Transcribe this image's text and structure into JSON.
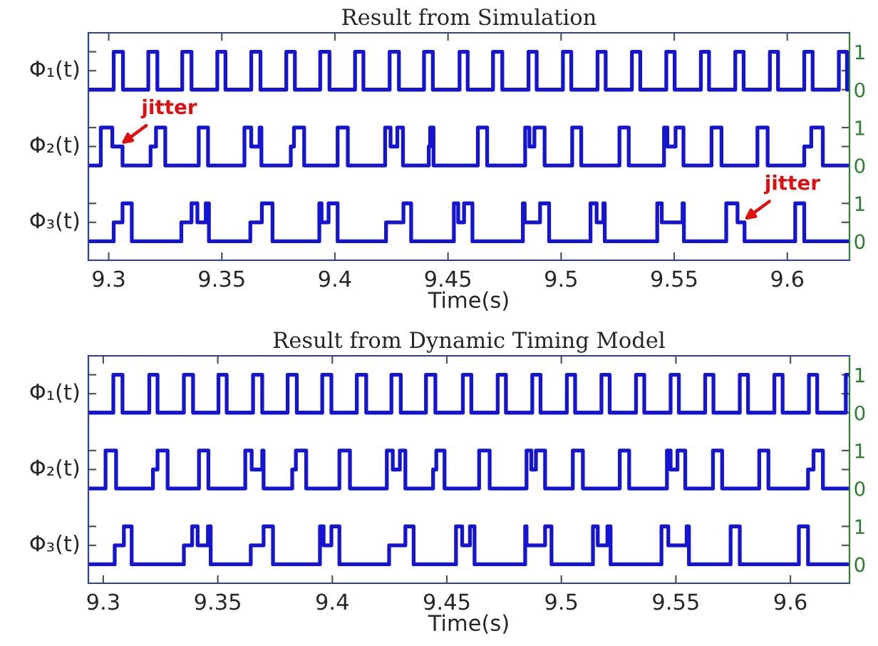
{
  "chart_data": [
    {
      "type": "step",
      "title": "Result from Simulation",
      "ylabel": "Φ₁(t)",
      "xlim": [
        9.291,
        9.6275
      ],
      "xticks": [
        9.3,
        9.35,
        9.4,
        9.45,
        9.5,
        9.55,
        9.6
      ],
      "ylim": [
        -0.5,
        1.5
      ],
      "yticks": [
        {
          "value": 0,
          "label": "0"
        },
        {
          "value": 0.5,
          "label": null
        },
        {
          "value": 1,
          "label": "1"
        }
      ],
      "tick_labels": "y",
      "series": [
        {
          "color": "#1414d2",
          "x": [
            9.291,
            9.3022,
            9.3063,
            9.3175,
            9.3215,
            9.3325,
            9.3366,
            9.348,
            9.3516,
            9.363,
            9.3671,
            9.3785,
            9.3823,
            9.3935,
            9.3976,
            9.4089,
            9.4126,
            9.4242,
            9.4283,
            9.4394,
            9.4433,
            9.4551,
            9.4587,
            9.4699,
            9.474,
            9.4856,
            9.4892,
            9.5008,
            9.5045,
            9.5161,
            9.5197,
            9.5313,
            9.535,
            9.5465,
            9.5502,
            9.5618,
            9.5654,
            9.577,
            9.5807,
            9.5923,
            9.5959,
            9.6075,
            9.6112,
            9.6228,
            9.6264,
            9.6275
          ],
          "values": [
            0,
            1,
            0,
            1,
            0,
            1,
            0,
            1,
            0,
            1,
            0,
            1,
            0,
            1,
            0,
            1,
            0,
            1,
            0,
            1,
            0,
            1,
            0,
            1,
            0,
            1,
            0,
            1,
            0,
            1,
            0,
            1,
            0,
            1,
            0,
            1,
            0,
            1,
            0,
            1,
            0,
            1,
            0,
            1,
            0,
            0
          ]
        }
      ]
    },
    {
      "type": "step",
      "ylabel": "Φ₂(t)",
      "xlim": [
        9.291,
        9.6275
      ],
      "xticks": [
        9.3,
        9.35,
        9.4,
        9.45,
        9.5,
        9.55,
        9.6
      ],
      "ylim": [
        -0.5,
        1.5
      ],
      "yticks": [
        {
          "value": 0,
          "label": "0"
        },
        {
          "value": 0.5,
          "label": null
        },
        {
          "value": 1,
          "label": "1"
        }
      ],
      "tick_labels": "y",
      "annotations": [
        {
          "text": "jitter",
          "x": 9.304,
          "y": 0.5
        }
      ],
      "series": [
        {
          "color": "#1414d2",
          "x": [
            9.291,
            9.2965,
            9.3016,
            9.3061,
            9.3185,
            9.3209,
            9.325,
            9.3398,
            9.3439,
            9.36,
            9.363,
            9.3667,
            9.3675,
            9.3805,
            9.3819,
            9.3864,
            9.4012,
            9.4057,
            9.4222,
            9.4246,
            9.4276,
            9.4301,
            9.4415,
            9.4421,
            9.4436,
            9.4632,
            9.4673,
            9.4841,
            9.486,
            9.4882,
            9.4927,
            9.5049,
            9.5089,
            9.5258,
            9.5299,
            9.5455,
            9.547,
            9.5506,
            9.5541,
            9.5665,
            9.5709,
            9.5868,
            9.5913,
            9.6075,
            9.6106,
            9.6157,
            9.6275
          ],
          "values": [
            0,
            1,
            0.5,
            0,
            0.5,
            1,
            0,
            1,
            0,
            1,
            0.5,
            1,
            0,
            0.5,
            1,
            0,
            1,
            0,
            1,
            0.5,
            1,
            0,
            0.5,
            1,
            0,
            1,
            0,
            1,
            0.5,
            1,
            0,
            1,
            0,
            1,
            0,
            1,
            0.5,
            1,
            0,
            1,
            0,
            1,
            0,
            0.5,
            1,
            0,
            0
          ]
        }
      ]
    },
    {
      "type": "step",
      "ylabel": "Φ₃(t)",
      "xlabel": "Time(s)",
      "xlim": [
        9.291,
        9.6275
      ],
      "xticks": [
        9.3,
        9.35,
        9.4,
        9.45,
        9.5,
        9.55,
        9.6
      ],
      "ylim": [
        -0.5,
        1.5
      ],
      "yticks": [
        {
          "value": 0,
          "label": "0"
        },
        {
          "value": 0.5,
          "label": null
        },
        {
          "value": 1,
          "label": "1"
        }
      ],
      "annotations": [
        {
          "text": "jitter",
          "x": 9.5795,
          "y": 0.5
        }
      ],
      "series": [
        {
          "color": "#1414d2",
          "x": [
            9.291,
            9.3022,
            9.3061,
            9.3102,
            9.3321,
            9.3366,
            9.3392,
            9.3429,
            9.3443,
            9.3626,
            9.3677,
            9.3724,
            9.3931,
            9.3941,
            9.3972,
            9.4012,
            9.4226,
            9.4303,
            9.4337,
            9.4526,
            9.4545,
            9.4571,
            9.4608,
            9.4831,
            9.4839,
            9.4907,
            9.4947,
            9.513,
            9.5157,
            9.5187,
            9.5193,
            9.5425,
            9.5445,
            9.5537,
            9.5543,
            9.573,
            9.578,
            9.5811,
            9.6035,
            9.6075,
            9.6275
          ],
          "values": [
            0,
            0.5,
            1,
            0,
            0.5,
            1,
            0.5,
            1,
            0,
            0.5,
            1,
            0,
            1,
            0.5,
            1,
            0,
            0.5,
            1,
            0,
            1,
            0.5,
            1,
            0,
            1,
            0.5,
            1,
            0,
            1,
            0.5,
            1,
            0,
            1,
            0.5,
            1,
            0,
            1,
            0.5,
            0,
            1,
            0,
            0
          ]
        }
      ]
    },
    {
      "type": "step",
      "title": "Result from Dynamic Timing Model",
      "ylabel": "Φ₁(t)",
      "xlim": [
        9.2935,
        9.6258
      ],
      "xticks": [
        9.3,
        9.35,
        9.4,
        9.45,
        9.5,
        9.55,
        9.6
      ],
      "ylim": [
        -0.5,
        1.5
      ],
      "yticks": [
        {
          "value": 0,
          "label": "0"
        },
        {
          "value": 0.5,
          "label": null
        },
        {
          "value": 1,
          "label": "1"
        }
      ],
      "tick_labels": "y",
      "series": [
        {
          "color": "#1414d2",
          "x": [
            9.2935,
            9.3044,
            9.3084,
            9.3201,
            9.3237,
            9.3352,
            9.3392,
            9.3503,
            9.3539,
            9.3654,
            9.3694,
            9.3805,
            9.3845,
            9.3956,
            9.3996,
            9.4107,
            9.4148,
            9.4258,
            9.4299,
            9.4409,
            9.445,
            9.457,
            9.4607,
            9.4722,
            9.4758,
            9.4873,
            9.4909,
            9.5024,
            9.506,
            9.5175,
            9.5211,
            9.5326,
            9.5362,
            9.5477,
            9.5513,
            9.5628,
            9.5664,
            9.5779,
            9.5815,
            9.593,
            9.5966,
            9.6081,
            9.6117,
            9.6242,
            9.6258
          ],
          "values": [
            0,
            1,
            0,
            1,
            0,
            1,
            0,
            1,
            0,
            1,
            0,
            1,
            0,
            1,
            0,
            1,
            0,
            1,
            0,
            1,
            0,
            1,
            0,
            1,
            0,
            1,
            0,
            1,
            0,
            1,
            0,
            1,
            0,
            1,
            0,
            1,
            0,
            1,
            0,
            1,
            0,
            1,
            0,
            1,
            1
          ]
        }
      ]
    },
    {
      "type": "step",
      "ylabel": "Φ₂(t)",
      "xlim": [
        9.2935,
        9.6258
      ],
      "xticks": [
        9.3,
        9.35,
        9.4,
        9.45,
        9.5,
        9.55,
        9.6
      ],
      "ylim": [
        -0.5,
        1.5
      ],
      "yticks": [
        {
          "value": 0,
          "label": "0"
        },
        {
          "value": 0.5,
          "label": null
        },
        {
          "value": 1,
          "label": "1"
        }
      ],
      "tick_labels": "y",
      "series": [
        {
          "color": "#1414d2",
          "x": [
            9.2935,
            9.301,
            9.3056,
            9.3217,
            9.3237,
            9.3281,
            9.3418,
            9.3459,
            9.362,
            9.3648,
            9.3694,
            9.37,
            9.3825,
            9.3841,
            9.3886,
            9.4031,
            9.4077,
            9.4238,
            9.4264,
            9.4295,
            9.4319,
            9.444,
            9.4454,
            9.449,
            9.4641,
            9.4687,
            9.4848,
            9.4869,
            9.4889,
            9.4929,
            9.505,
            9.5094,
            9.5255,
            9.5296,
            9.5461,
            9.5477,
            9.5507,
            9.5541,
            9.5662,
            9.5702,
            9.5864,
            9.5904,
            9.6077,
            9.6101,
            9.6142,
            9.6258
          ],
          "values": [
            0,
            1,
            0,
            0.5,
            1,
            0,
            1,
            0,
            1,
            0.5,
            1,
            0,
            0.5,
            1,
            0,
            1,
            0,
            1,
            0.5,
            1,
            0,
            0.5,
            1,
            0,
            1,
            0,
            1,
            0.5,
            1,
            0,
            1,
            0,
            1,
            0,
            1,
            0.5,
            1,
            0,
            1,
            0,
            1,
            0,
            0.5,
            1,
            0,
            0
          ]
        }
      ]
    },
    {
      "type": "step",
      "ylabel": "Φ₃(t)",
      "xlabel": "Time(s)",
      "xlim": [
        9.2935,
        9.6258
      ],
      "xticks": [
        9.3,
        9.35,
        9.4,
        9.45,
        9.5,
        9.55,
        9.6
      ],
      "ylim": [
        -0.5,
        1.5
      ],
      "yticks": [
        {
          "value": 0,
          "label": "0"
        },
        {
          "value": 0.5,
          "label": null
        },
        {
          "value": 1,
          "label": "1"
        }
      ],
      "series": [
        {
          "color": "#1414d2",
          "x": [
            9.2935,
            9.305,
            9.309,
            9.3124,
            9.3352,
            9.3388,
            9.3412,
            9.3457,
            9.3469,
            9.3644,
            9.37,
            9.3741,
            9.3946,
            9.3962,
            9.3996,
            9.4031,
            9.4248,
            9.4319,
            9.4355,
            9.454,
            9.4567,
            9.4601,
            9.4621,
            9.4842,
            9.4848,
            9.4929,
            9.4957,
            9.5138,
            9.5159,
            9.5201,
            9.5215,
            9.5437,
            9.5467,
            9.5547,
            9.5557,
            9.5739,
            9.5779,
            9.6037,
            9.6077,
            9.6258
          ],
          "values": [
            0,
            0.5,
            1,
            0,
            0.5,
            1,
            0.5,
            1,
            0,
            0.5,
            1,
            0,
            1,
            0.5,
            1,
            0,
            0.5,
            1,
            0,
            1,
            0.5,
            1,
            0,
            1,
            0.5,
            1,
            0,
            1,
            0.5,
            1,
            0,
            1,
            0.5,
            1,
            0,
            1,
            0,
            1,
            0,
            0
          ]
        }
      ]
    }
  ]
}
